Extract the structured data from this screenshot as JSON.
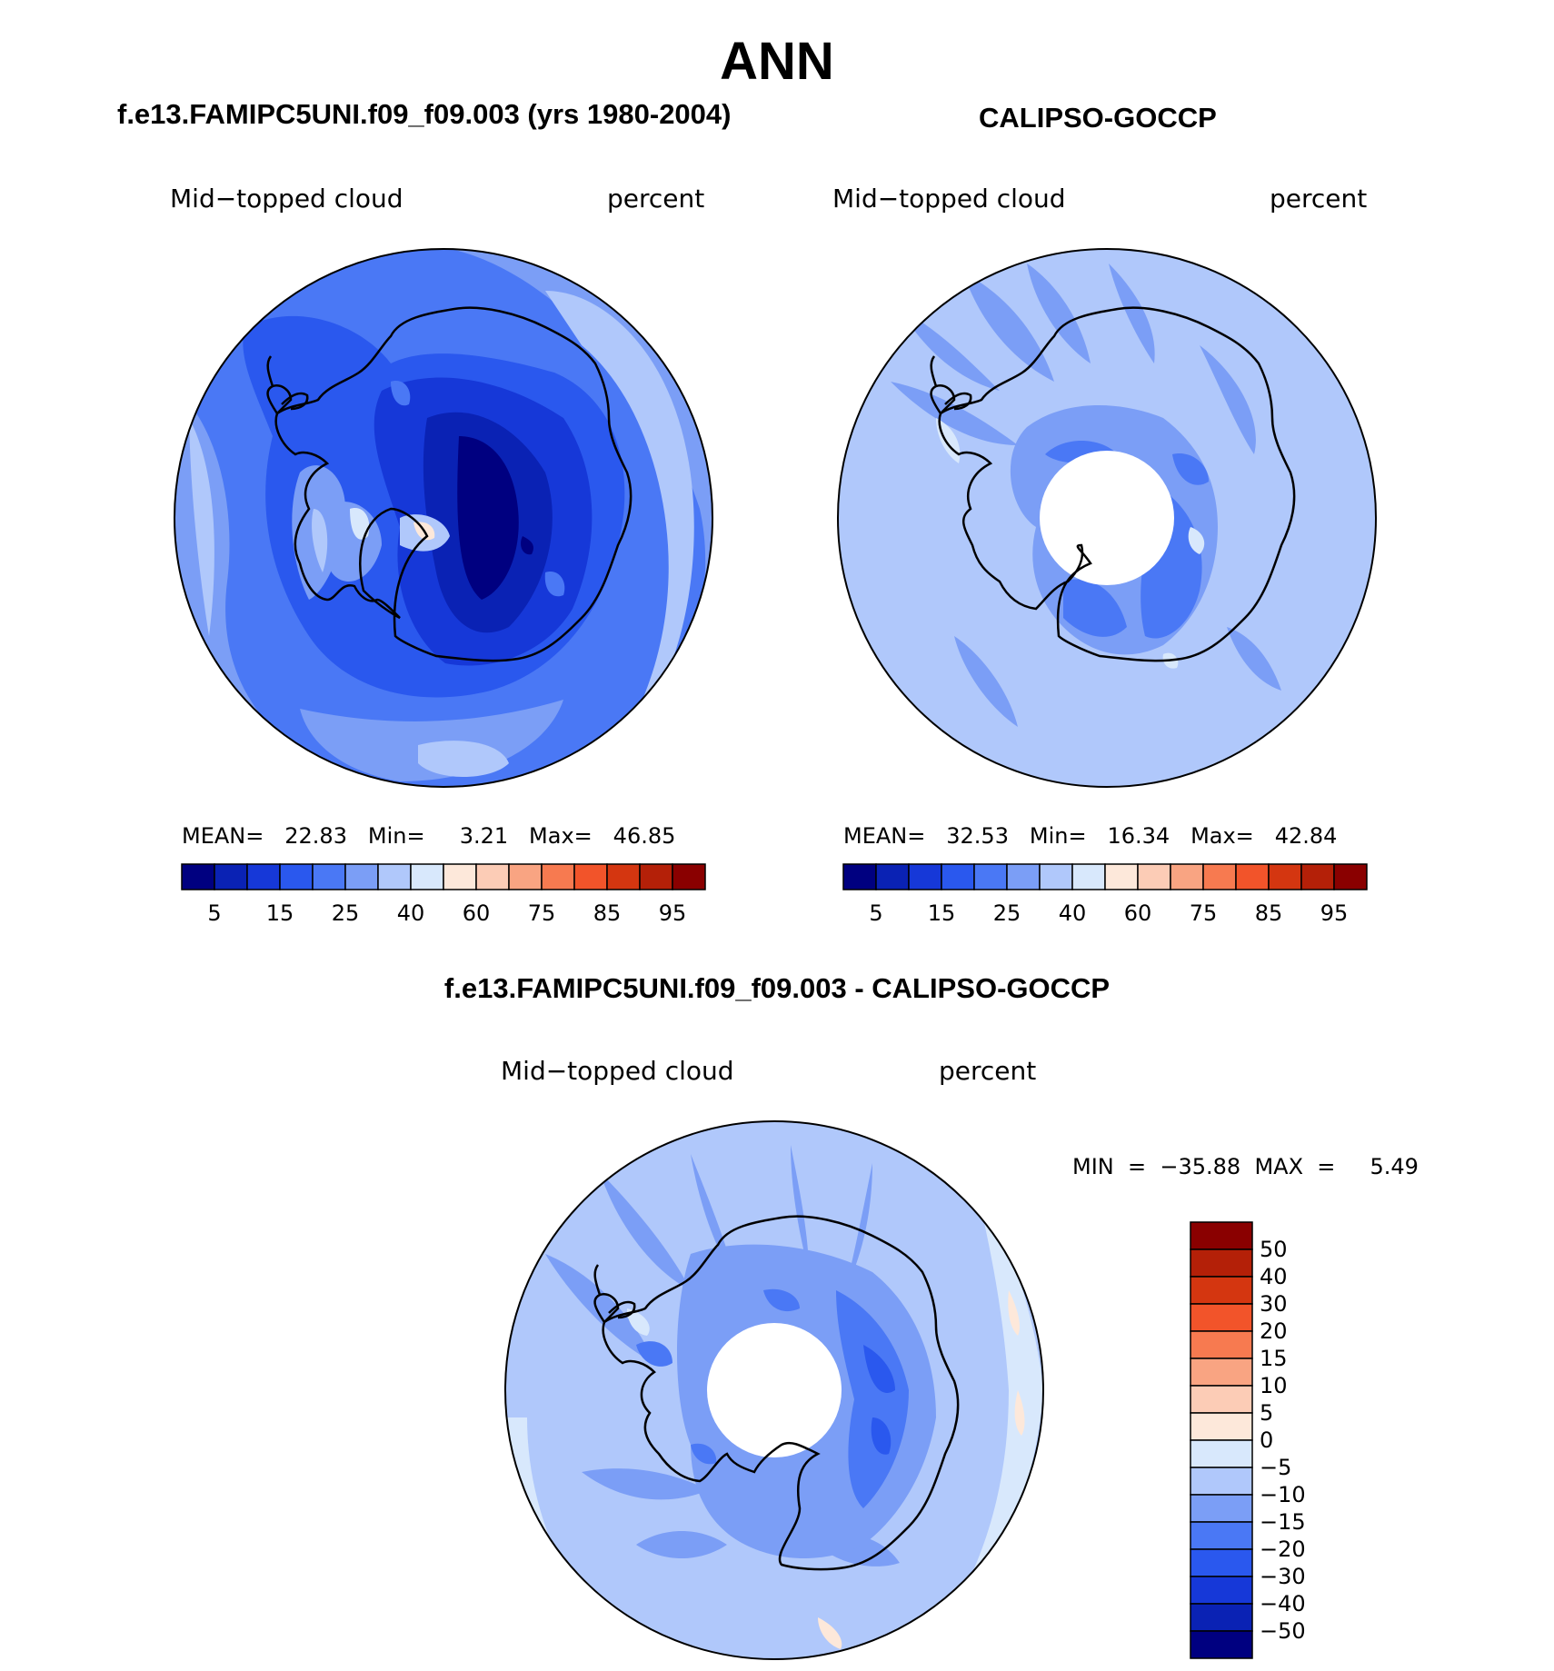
{
  "figure": {
    "title": "ANN",
    "colors": {
      "abs_scale": [
        "#000080",
        "#0a22b4",
        "#1638d8",
        "#2a58ee",
        "#4a78f5",
        "#7b9ef6",
        "#b0c8fb",
        "#d8e8fc",
        "#fde8da",
        "#fcccb6",
        "#f9a482",
        "#f77a50",
        "#f2542a",
        "#d43610",
        "#b42008",
        "#8a0000"
      ],
      "diff_scale": [
        "#000080",
        "#0a22b4",
        "#1638d8",
        "#2a58ee",
        "#4a78f5",
        "#7b9ef6",
        "#b0c8fb",
        "#d8e8fc",
        "#fde8da",
        "#fcccb6",
        "#f9a482",
        "#f77a50",
        "#f2542a",
        "#d43610",
        "#b42008",
        "#8a0000"
      ],
      "coastline": "#000000",
      "background": "#ffffff"
    }
  },
  "panels": [
    {
      "id": "model",
      "header": "f.e13.FAMIPC5UNI.f09_f09.003 (yrs 1980-2004)",
      "variable_label": "Mid−topped cloud",
      "units_label": "percent",
      "stats": {
        "mean_label": "MEAN=",
        "mean": "22.83",
        "min_label": "Min=",
        "min": "3.21",
        "max_label": "Max=",
        "max": "46.85"
      },
      "colorbar_ticks": [
        "5",
        "15",
        "25",
        "40",
        "60",
        "75",
        "85",
        "95"
      ]
    },
    {
      "id": "obs",
      "header": "CALIPSO-GOCCP",
      "variable_label": "Mid−topped cloud",
      "units_label": "percent",
      "stats": {
        "mean_label": "MEAN=",
        "mean": "32.53",
        "min_label": "Min=",
        "min": "16.34",
        "max_label": "Max=",
        "max": "42.84"
      },
      "colorbar_ticks": [
        "5",
        "15",
        "25",
        "40",
        "60",
        "75",
        "85",
        "95"
      ]
    },
    {
      "id": "diff",
      "header": "f.e13.FAMIPC5UNI.f09_f09.003 - CALIPSO-GOCCP",
      "variable_label": "Mid−topped cloud",
      "units_label": "percent",
      "minmax_text": "MIN  =  −35.88  MAX  =     5.49",
      "colorbar_ticks": [
        "50",
        "40",
        "30",
        "20",
        "15",
        "10",
        "5",
        "0",
        "−5",
        "−10",
        "−15",
        "−20",
        "−30",
        "−40",
        "−50"
      ]
    }
  ]
}
